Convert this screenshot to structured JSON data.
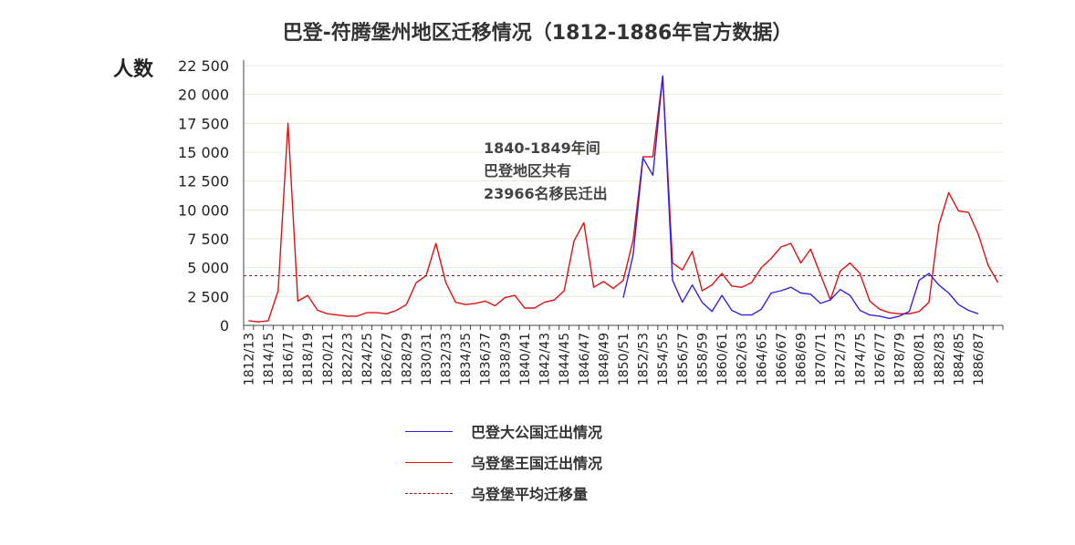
{
  "chart_data": {
    "type": "line",
    "title": "巴登-符腾堡州地区迁移情况（1812-1886年官方数据）",
    "ylabel": "人数",
    "xlabel": "",
    "ylim": [
      0,
      22500
    ],
    "yticks": [
      "0",
      "2 500",
      "5 000",
      "7 500",
      "10 000",
      "12 500",
      "15 000",
      "17 500",
      "20 000",
      "22 500"
    ],
    "x_labels": [
      "1812/13",
      "1814/15",
      "1816/17",
      "1818/19",
      "1820/21",
      "1822/23",
      "1824/25",
      "1826/27",
      "1828/29",
      "1830/31",
      "1832/33",
      "1834/35",
      "1836/37",
      "1838/39",
      "1840/41",
      "1842/43",
      "1844/45",
      "1846/47",
      "1848/49",
      "1850/51",
      "1852/53",
      "1854/55",
      "1856/57",
      "1858/59",
      "1860/61",
      "1862/63",
      "1864/65",
      "1866/67",
      "1868/69",
      "1870/71",
      "1872/73",
      "1874/75",
      "1876/77",
      "1878/79",
      "1880/81",
      "1882/83",
      "1884/85",
      "1886/87"
    ],
    "grid": "horizontal",
    "legend_position": "bottom",
    "annotation": [
      "1840-1849年间",
      "巴登地区共有",
      "23966名移民迁出"
    ],
    "series": [
      {
        "name": "巴登大公国迁出情况",
        "color": "#3322dd",
        "start_index": 38,
        "values": [
          2400,
          6100,
          14500,
          13000,
          21600,
          3900,
          2000,
          3500,
          2000,
          1200,
          2600,
          1300,
          900,
          900,
          1400,
          2800,
          3000,
          3300,
          2800,
          2700,
          1900,
          2200,
          3100,
          2600,
          1300,
          900,
          800,
          600,
          800,
          1200,
          3900,
          4500,
          3500,
          2800,
          1800,
          1300,
          1000
        ]
      },
      {
        "name": "乌登堡王国迁出情况",
        "color": "#dd1111",
        "start_index": 0,
        "values": [
          400,
          300,
          400,
          3000,
          17500,
          2100,
          2600,
          1300,
          1000,
          900,
          800,
          800,
          1100,
          1100,
          1000,
          1300,
          1800,
          3700,
          4300,
          7100,
          3700,
          2000,
          1800,
          1900,
          2100,
          1700,
          2400,
          2600,
          1500,
          1500,
          2000,
          2200,
          3000,
          7300,
          8900,
          3300,
          3800,
          3200,
          3900,
          7400,
          14600,
          14600,
          21600,
          5400,
          4800,
          6400,
          3000,
          3500,
          4500,
          3400,
          3300,
          3700,
          5000,
          5800,
          6800,
          7100,
          5400,
          6600,
          4400,
          2200,
          4700,
          5400,
          4500,
          2100,
          1400,
          1100,
          1000,
          1000,
          1200,
          2000,
          8700,
          11500,
          9900,
          9800,
          7900,
          5200,
          3700
        ]
      }
    ],
    "reference_line": {
      "name": "乌登堡平均迁移量",
      "color": "#aa1111",
      "value": 4300,
      "style": "dashed"
    }
  }
}
